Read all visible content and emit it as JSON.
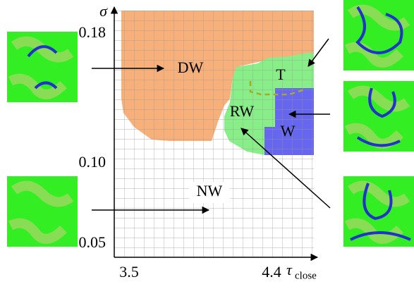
{
  "axes": {
    "y_label": "σ",
    "x_label": "τ",
    "x_label_sub": "close",
    "y_ticks": [
      "0.18",
      "0.10",
      "0.05"
    ],
    "x_ticks": [
      "3.5",
      "4.4"
    ]
  },
  "regions": [
    {
      "label": "DW"
    },
    {
      "label": "T"
    },
    {
      "label": "RW"
    },
    {
      "label": "W"
    },
    {
      "label": "NW"
    }
  ]
}
